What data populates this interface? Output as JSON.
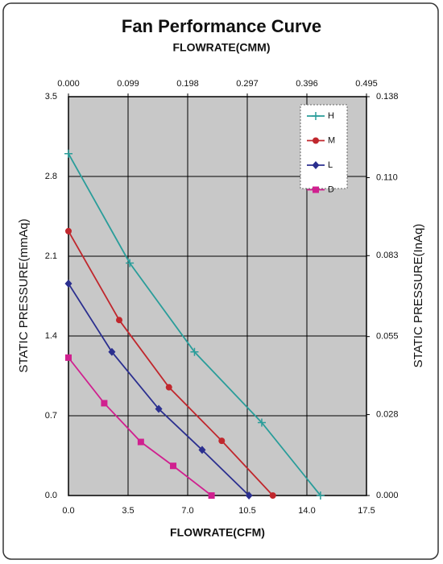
{
  "chart_data": {
    "type": "line",
    "title": "Fan Performance Curve",
    "x_label": "FLOWRATE(CFM)",
    "x2_label": "FLOWRATE(CMM)",
    "y_label": "STATIC PRESSURE(mmAq)",
    "y2_label": "STATIC PRESSURE(InAq)",
    "xlim": [
      0,
      17.5
    ],
    "xticks": [
      {
        "value": 0,
        "label": "0.0"
      },
      3.5,
      {
        "value": 7,
        "label": "7.0"
      },
      10.5,
      {
        "value": 14,
        "label": "14.0"
      },
      17.5
    ],
    "x2lim": [
      0,
      0.495
    ],
    "x2ticks": [
      {
        "value": 0,
        "label": "0.000"
      },
      0.099,
      0.198,
      0.297,
      0.396,
      0.495
    ],
    "ylim": [
      0,
      3.5
    ],
    "yticks": [
      {
        "value": 0,
        "label": "0.0"
      },
      0.7,
      1.4,
      2.1,
      2.8,
      3.5
    ],
    "y2lim": [
      0,
      0.138
    ],
    "y2ticks": [
      {
        "value": 0,
        "label": "0.000"
      },
      0.028,
      0.055,
      0.083,
      {
        "value": 0.11,
        "label": "0.110"
      },
      0.138
    ],
    "grid": true,
    "legend": "upper right",
    "series": [
      {
        "name": "H",
        "color": "#2a9d9a",
        "marker": "plus",
        "x": [
          0,
          3.6,
          7.4,
          11.35,
          14.8
        ],
        "values": [
          3.0,
          2.04,
          1.26,
          0.64,
          0
        ]
      },
      {
        "name": "M",
        "color": "#c0272d",
        "marker": "circle",
        "x": [
          0,
          2.98,
          5.9,
          9.0,
          12.0
        ],
        "values": [
          2.32,
          1.54,
          0.95,
          0.48,
          0
        ]
      },
      {
        "name": "L",
        "color": "#2b2f8f",
        "marker": "diamond",
        "x": [
          0,
          2.55,
          5.3,
          7.85,
          10.6
        ],
        "values": [
          1.86,
          1.26,
          0.76,
          0.4,
          0
        ]
      },
      {
        "name": "D",
        "color": "#d0208f",
        "marker": "square",
        "x": [
          0,
          2.1,
          4.25,
          6.15,
          8.4
        ],
        "values": [
          1.21,
          0.81,
          0.47,
          0.26,
          0
        ]
      }
    ]
  }
}
